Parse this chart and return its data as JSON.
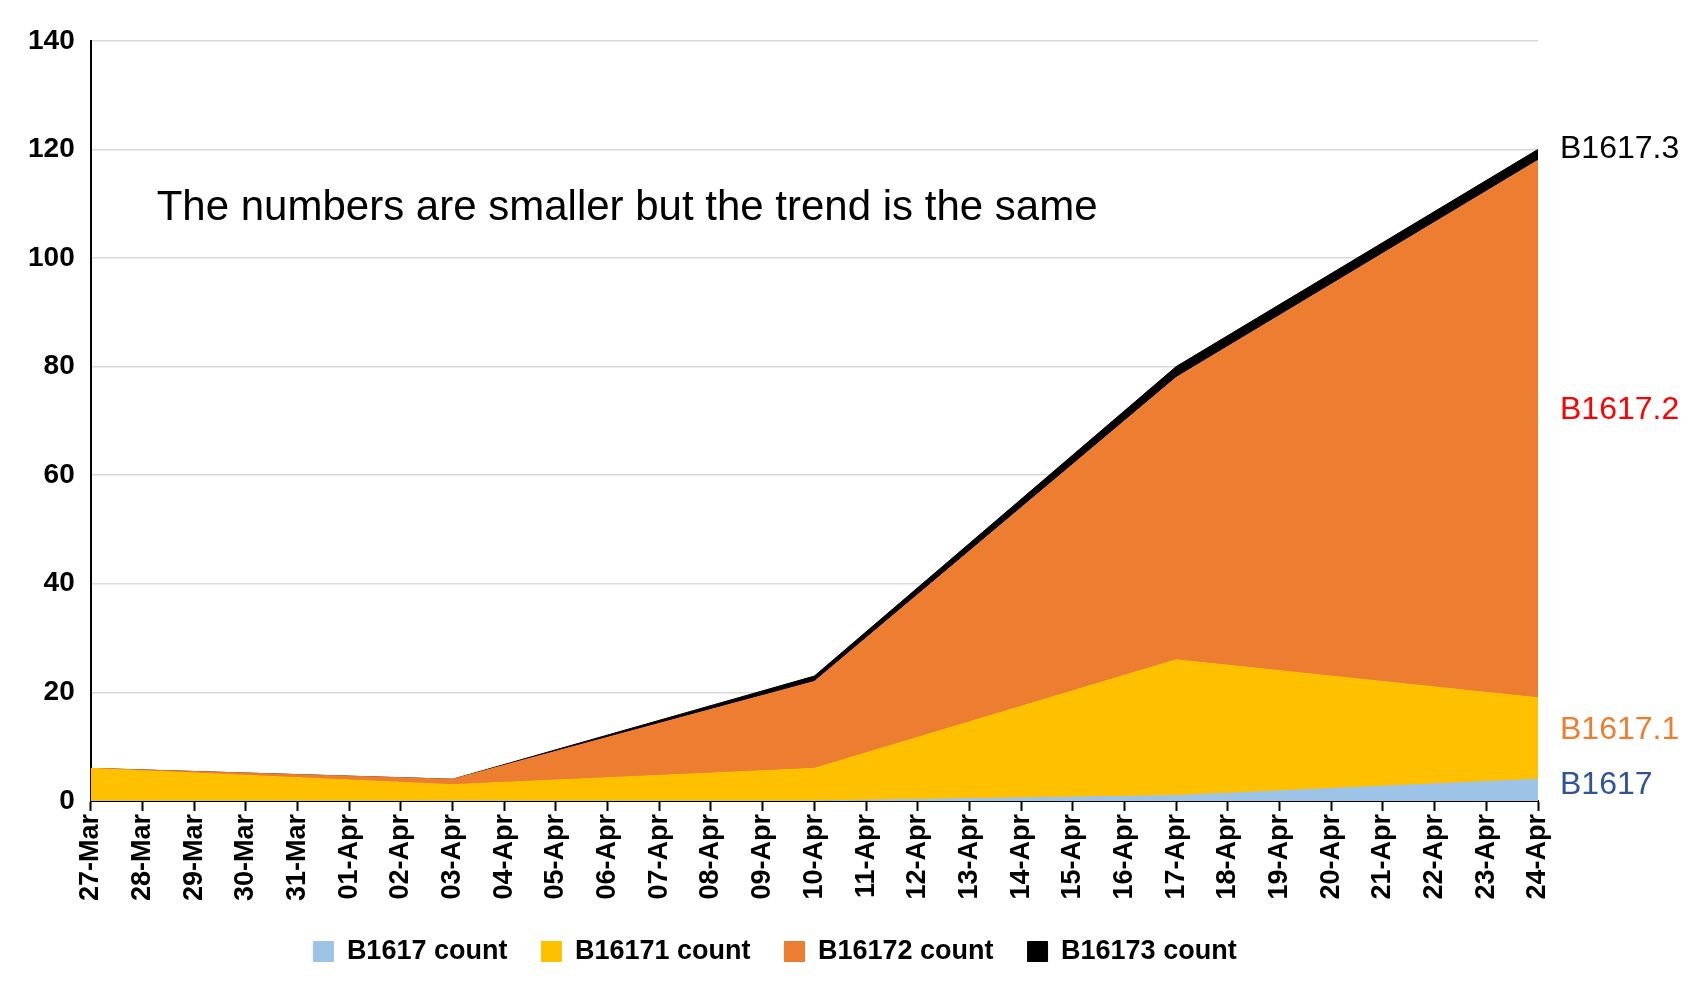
{
  "chart_data": {
    "type": "area",
    "stacked": true,
    "x": [
      "--03-27",
      "--04-03",
      "--04-10",
      "--04-17",
      "--04-24"
    ],
    "xlim": [
      "--03-27",
      "--04-24"
    ],
    "xticks": [
      {
        "value": "--03-27",
        "label": "27-Mar"
      },
      {
        "value": "--03-28",
        "label": "28-Mar"
      },
      {
        "value": "--03-29",
        "label": "29-Mar"
      },
      {
        "value": "--03-30",
        "label": "30-Mar"
      },
      {
        "value": "--03-31",
        "label": "31-Mar"
      },
      {
        "value": "--04-01",
        "label": "01-Apr"
      },
      {
        "value": "--04-02",
        "label": "02-Apr"
      },
      {
        "value": "--04-03",
        "label": "03-Apr"
      },
      {
        "value": "--04-04",
        "label": "04-Apr"
      },
      {
        "value": "--04-05",
        "label": "05-Apr"
      },
      {
        "value": "--04-06",
        "label": "06-Apr"
      },
      {
        "value": "--04-07",
        "label": "07-Apr"
      },
      {
        "value": "--04-08",
        "label": "08-Apr"
      },
      {
        "value": "--04-09",
        "label": "09-Apr"
      },
      {
        "value": "--04-10",
        "label": "10-Apr"
      },
      {
        "value": "--04-11",
        "label": "11-Apr"
      },
      {
        "value": "--04-12",
        "label": "12-Apr"
      },
      {
        "value": "--04-13",
        "label": "13-Apr"
      },
      {
        "value": "--04-14",
        "label": "14-Apr"
      },
      {
        "value": "--04-15",
        "label": "15-Apr"
      },
      {
        "value": "--04-16",
        "label": "16-Apr"
      },
      {
        "value": "--04-17",
        "label": "17-Apr"
      },
      {
        "value": "--04-18",
        "label": "18-Apr"
      },
      {
        "value": "--04-19",
        "label": "19-Apr"
      },
      {
        "value": "--04-20",
        "label": "20-Apr"
      },
      {
        "value": "--04-21",
        "label": "21-Apr"
      },
      {
        "value": "--04-22",
        "label": "22-Apr"
      },
      {
        "value": "--04-23",
        "label": "23-Apr"
      },
      {
        "value": "--04-24",
        "label": "24-Apr"
      }
    ],
    "ylim": [
      0,
      140
    ],
    "yticks": [
      0,
      20,
      40,
      60,
      80,
      100,
      120,
      140
    ],
    "series": [
      {
        "name": "B1617 count",
        "color": "#9dc3e6",
        "values": [
          0,
          0,
          0,
          1,
          4
        ]
      },
      {
        "name": "B16171 count",
        "color": "#ffc000",
        "values": [
          6,
          3,
          6,
          25,
          15
        ]
      },
      {
        "name": "B16172 count",
        "color": "#ed7d31",
        "values": [
          0,
          1,
          16,
          52,
          99
        ]
      },
      {
        "name": "B16173 count",
        "color": "#000000",
        "values": [
          0,
          0,
          1,
          2,
          2
        ]
      }
    ],
    "grid": "y",
    "legend": "bottom",
    "annotations": [
      "The numbers are smaller but the trend is the same",
      {
        "text": "B1617.3",
        "x": "--04-24",
        "y": 120
      },
      {
        "text": "B1617.2",
        "x": "--04-24",
        "y": 72
      },
      {
        "text": "B1617.1",
        "x": "--04-24",
        "y": 13
      },
      {
        "text": "B1617",
        "x": "--04-24",
        "y": 3
      }
    ]
  }
}
